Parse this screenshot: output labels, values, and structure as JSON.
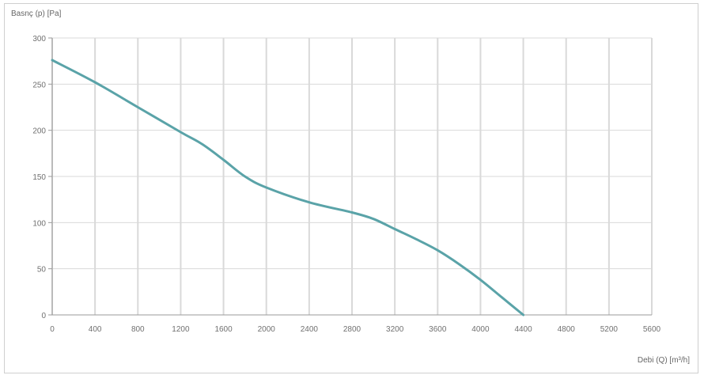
{
  "chart_data": {
    "type": "line",
    "ylabel": "Basnç (p) [Pa]",
    "xlabel": "Debi (Q) [m³/h]",
    "x_ticks": [
      "0",
      "400",
      "800",
      "1200",
      "1600",
      "2000",
      "2400",
      "2800",
      "3200",
      "3600",
      "4000",
      "4400",
      "4800",
      "5200",
      "5600"
    ],
    "y_ticks": [
      "0",
      "50",
      "100",
      "150",
      "200",
      "250",
      "300"
    ],
    "xlim": [
      0,
      5600
    ],
    "ylim": [
      0,
      300
    ],
    "grid": true,
    "colors": {
      "line": "#5aa3a8",
      "grid": "#d9d9d9",
      "axis": "#9a9a9a"
    },
    "series": [
      {
        "x": [
          0,
          400,
          800,
          1200,
          1400,
          1600,
          1800,
          2000,
          2400,
          2800,
          3000,
          3200,
          3400,
          3600,
          3800,
          4000,
          4200,
          4400
        ],
        "y": [
          276,
          252,
          225,
          198,
          185,
          168,
          150,
          138,
          122,
          111,
          104,
          93,
          82,
          70,
          55,
          38,
          19,
          0
        ]
      }
    ]
  }
}
